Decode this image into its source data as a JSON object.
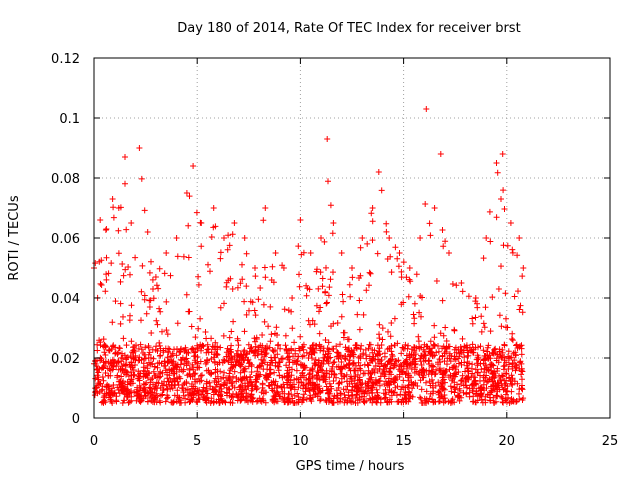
{
  "chart_data": {
    "type": "scatter",
    "title": "Day 180 of 2014, Rate Of TEC Index for receiver brst",
    "xlabel": "GPS time / hours",
    "ylabel": "ROTI / TECUs",
    "xlim": [
      0,
      25
    ],
    "ylim": [
      0,
      0.12
    ],
    "xticks": [
      0,
      5,
      10,
      15,
      20,
      25
    ],
    "xtick_labels": [
      "0",
      "5",
      "10",
      "15",
      "20",
      "25"
    ],
    "yticks": [
      0,
      0.02,
      0.04,
      0.06,
      0.08,
      0.1,
      0.12
    ],
    "ytick_labels": [
      "0",
      "0.02",
      "0.04",
      "0.06",
      "0.08",
      "0.1",
      "0.12"
    ],
    "grid": true,
    "marker": "+",
    "color": "#ff0000",
    "series": [
      {
        "x_range": [
          0,
          20.8
        ],
        "envelope": [
          {
            "x": 0.0,
            "y": 0.05
          },
          {
            "x": 0.3,
            "y": 0.066
          },
          {
            "x": 0.6,
            "y": 0.063
          },
          {
            "x": 0.9,
            "y": 0.073
          },
          {
            "x": 1.2,
            "y": 0.07
          },
          {
            "x": 1.5,
            "y": 0.087
          },
          {
            "x": 1.8,
            "y": 0.065
          },
          {
            "x": 2.2,
            "y": 0.09
          },
          {
            "x": 2.6,
            "y": 0.062
          },
          {
            "x": 3.0,
            "y": 0.047
          },
          {
            "x": 3.5,
            "y": 0.055
          },
          {
            "x": 4.0,
            "y": 0.06
          },
          {
            "x": 4.5,
            "y": 0.075
          },
          {
            "x": 4.8,
            "y": 0.084
          },
          {
            "x": 5.2,
            "y": 0.065
          },
          {
            "x": 5.8,
            "y": 0.07
          },
          {
            "x": 6.3,
            "y": 0.06
          },
          {
            "x": 6.8,
            "y": 0.065
          },
          {
            "x": 7.3,
            "y": 0.06
          },
          {
            "x": 7.8,
            "y": 0.05
          },
          {
            "x": 8.3,
            "y": 0.07
          },
          {
            "x": 8.8,
            "y": 0.055
          },
          {
            "x": 9.2,
            "y": 0.05
          },
          {
            "x": 9.6,
            "y": 0.04
          },
          {
            "x": 10.0,
            "y": 0.066
          },
          {
            "x": 10.5,
            "y": 0.055
          },
          {
            "x": 11.0,
            "y": 0.06
          },
          {
            "x": 11.3,
            "y": 0.093
          },
          {
            "x": 11.6,
            "y": 0.065
          },
          {
            "x": 12.0,
            "y": 0.055
          },
          {
            "x": 12.5,
            "y": 0.05
          },
          {
            "x": 13.0,
            "y": 0.06
          },
          {
            "x": 13.5,
            "y": 0.07
          },
          {
            "x": 13.8,
            "y": 0.082
          },
          {
            "x": 14.3,
            "y": 0.06
          },
          {
            "x": 14.8,
            "y": 0.055
          },
          {
            "x": 15.3,
            "y": 0.05
          },
          {
            "x": 15.8,
            "y": 0.06
          },
          {
            "x": 16.1,
            "y": 0.103
          },
          {
            "x": 16.5,
            "y": 0.07
          },
          {
            "x": 16.8,
            "y": 0.088
          },
          {
            "x": 17.2,
            "y": 0.055
          },
          {
            "x": 17.8,
            "y": 0.045
          },
          {
            "x": 18.5,
            "y": 0.04
          },
          {
            "x": 19.0,
            "y": 0.06
          },
          {
            "x": 19.5,
            "y": 0.085
          },
          {
            "x": 19.8,
            "y": 0.088
          },
          {
            "x": 20.2,
            "y": 0.065
          },
          {
            "x": 20.6,
            "y": 0.06
          },
          {
            "x": 20.8,
            "y": 0.05
          }
        ],
        "baseline": [
          0.005,
          0.02
        ]
      }
    ]
  }
}
